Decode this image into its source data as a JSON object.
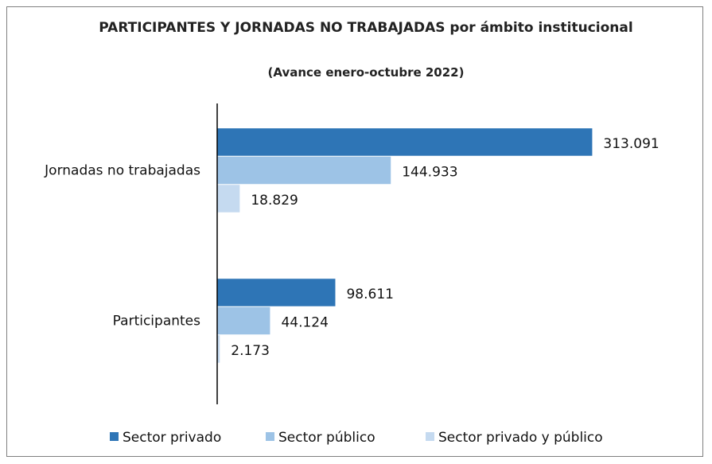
{
  "chart_data": {
    "type": "bar",
    "orientation": "horizontal",
    "title": "PARTICIPANTES  Y JORNADAS NO TRABAJADAS  por ámbito institucional",
    "subtitle": "(Avance enero-octubre  2022)",
    "categories": [
      "Jornadas no trabajadas",
      "Participantes"
    ],
    "series": [
      {
        "name": "Sector privado",
        "color": "#2e75b6",
        "values": [
          313091,
          98611
        ],
        "value_labels": [
          "313.091",
          "98.611"
        ]
      },
      {
        "name": "Sector público",
        "color": "#9dc3e6",
        "values": [
          144933,
          44124
        ],
        "value_labels": [
          "144.933",
          "44.124"
        ]
      },
      {
        "name": "Sector privado y público",
        "color": "#c5daf0",
        "values": [
          18829,
          2173
        ],
        "value_labels": [
          "18.829",
          "2.173"
        ]
      }
    ],
    "xlim": [
      0,
      350000
    ],
    "legend": "bottom"
  }
}
